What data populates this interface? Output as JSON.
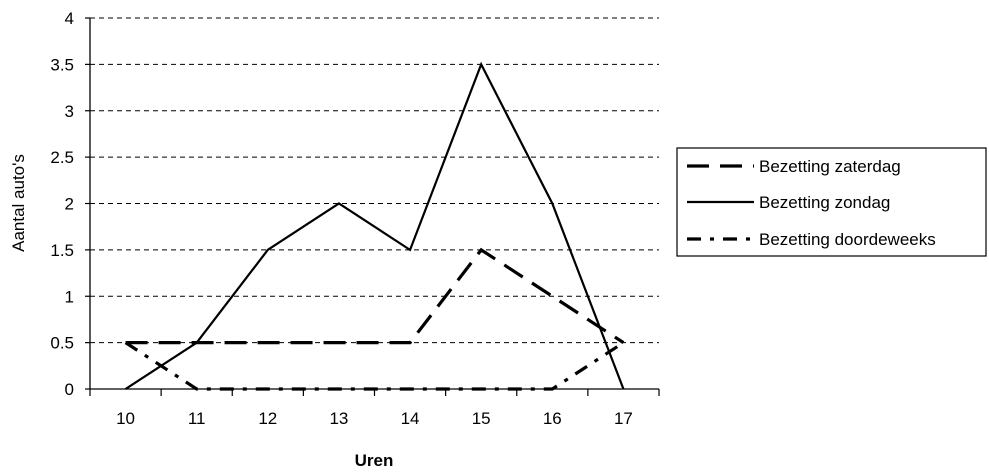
{
  "chart_data": {
    "type": "line",
    "title": "",
    "xlabel": "Uren",
    "ylabel": "Aantal auto's",
    "x": [
      10,
      11,
      12,
      13,
      14,
      15,
      16,
      17
    ],
    "xticks": [
      "10",
      "11",
      "12",
      "13",
      "14",
      "15",
      "16",
      "17"
    ],
    "yticks": [
      "0",
      "0.5",
      "1",
      "1.5",
      "2",
      "2.5",
      "3",
      "3.5",
      "4"
    ],
    "ylim": [
      0,
      4
    ],
    "grid": "horizontal dashed",
    "legend_position": "right",
    "series": [
      {
        "name": "Bezetting zaterdag",
        "style": "long-dash",
        "values": [
          0.5,
          0.5,
          0.5,
          0.5,
          0.5,
          1.5,
          1.0,
          0.5
        ]
      },
      {
        "name": "Bezetting zondag",
        "style": "solid",
        "values": [
          0,
          0.5,
          1.5,
          2,
          1.5,
          3.5,
          2,
          0
        ]
      },
      {
        "name": "Bezetting doordeweeks",
        "style": "dash-dot",
        "values": [
          0.5,
          0,
          0,
          0,
          0,
          0,
          0,
          0.5
        ]
      }
    ],
    "colors": {
      "line": "#000000",
      "grid": "#000000",
      "background": "#ffffff"
    }
  }
}
